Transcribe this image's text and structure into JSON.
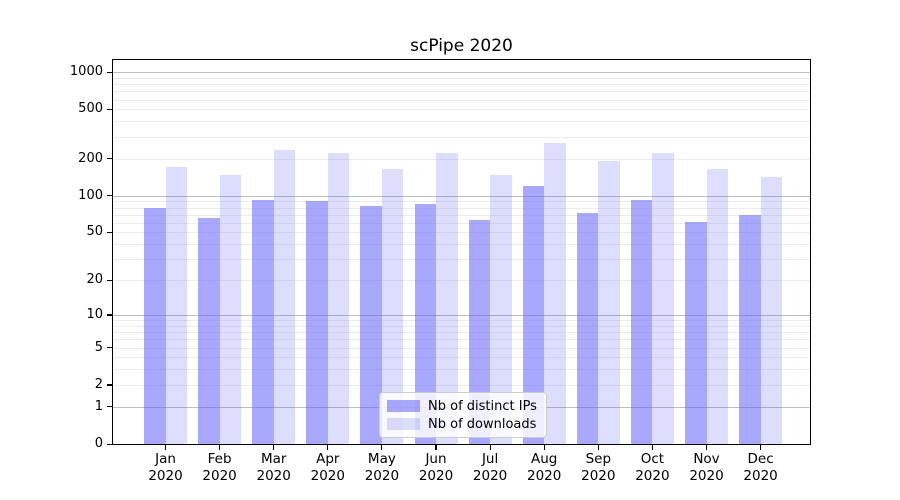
{
  "chart_data": {
    "type": "bar",
    "title": "scPipe 2020",
    "categories": [
      "Jan",
      "Feb",
      "Mar",
      "Apr",
      "May",
      "Jun",
      "Jul",
      "Aug",
      "Sep",
      "Oct",
      "Nov",
      "Dec"
    ],
    "x_tick_second_line": "2020",
    "series": [
      {
        "name": "Nb of distinct IPs",
        "color": "rgba(99,99,250,0.56)",
        "values": [
          80,
          66,
          93,
          91,
          83,
          86,
          63,
          120,
          72,
          93,
          61,
          70
        ]
      },
      {
        "name": "Nb of downloads",
        "color": "rgba(99,99,250,0.22)",
        "values": [
          172,
          146,
          233,
          221,
          166,
          222,
          146,
          268,
          192,
          223,
          165,
          142
        ]
      }
    ],
    "yscale": "log10(1+x)",
    "y_tick_labels": [
      0,
      1,
      2,
      5,
      10,
      20,
      50,
      100,
      200,
      500,
      1000
    ],
    "ylim": [
      0,
      1255
    ],
    "grid": true,
    "legend_position": "lower-center",
    "colors": {
      "major_grid": "#bdbdbd",
      "minor_grid": "#ececec",
      "axis": "#000000",
      "legend_bg": "rgba(255,255,255,0.8)",
      "legend_border": "#cccccc",
      "text": "#000000"
    }
  }
}
